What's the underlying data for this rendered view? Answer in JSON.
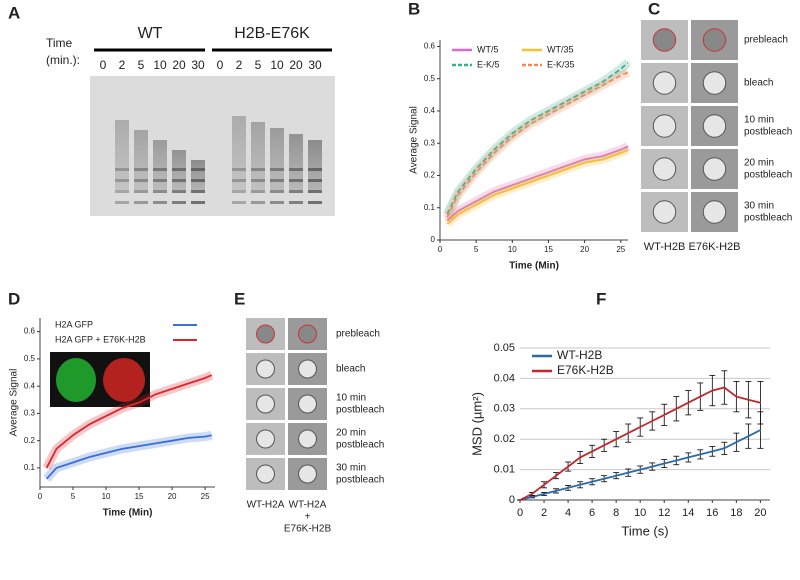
{
  "gel": {
    "letter": "A",
    "time_label": [
      "Time",
      "(min.):"
    ],
    "groups": [
      {
        "name": "WT",
        "times": [
          "0",
          "2",
          "5",
          "10",
          "20",
          "30"
        ]
      },
      {
        "name": "H2B-E76K",
        "times": [
          "0",
          "2",
          "5",
          "10",
          "20",
          "30"
        ]
      }
    ]
  },
  "frap_c": {
    "letter": "C",
    "columns": [
      "WT-H2B",
      "E76K-H2B"
    ],
    "rows": [
      [
        "prebleach"
      ],
      [
        "bleach"
      ],
      [
        "10 min",
        "postbleach"
      ],
      [
        "20 min",
        "postbleach"
      ],
      [
        "30 min",
        "postbleach"
      ]
    ]
  },
  "frap_e": {
    "letter": "E",
    "columns": [
      [
        "WT-H2A"
      ],
      [
        "WT-H2A",
        "+",
        "E76K-H2B"
      ]
    ],
    "rows": [
      [
        "prebleach"
      ],
      [
        "bleach"
      ],
      [
        "10 min",
        "postbleach"
      ],
      [
        "20 min",
        "postbleach"
      ],
      [
        "30 min",
        "postbleach"
      ]
    ]
  },
  "chart_data": [
    {
      "type": "line",
      "panel_label": "B",
      "xlabel": "Time (Min)",
      "ylabel": "Average Signal",
      "xlim": [
        0,
        26
      ],
      "ylim": [
        0,
        0.62
      ],
      "xticks": [
        0,
        5,
        10,
        15,
        20,
        25
      ],
      "yticks": [
        0,
        0.1,
        0.2,
        0.3,
        0.4,
        0.5,
        0.6
      ],
      "legend": "upper left",
      "grid": false,
      "x": [
        1,
        2.5,
        5,
        7.5,
        10,
        12.5,
        15,
        17.5,
        20,
        22.5,
        25,
        26
      ],
      "series": [
        {
          "name": "WT/5",
          "color": "#d96ad0",
          "style": "solid",
          "values": [
            0.06,
            0.09,
            0.12,
            0.15,
            0.17,
            0.19,
            0.21,
            0.23,
            0.25,
            0.26,
            0.28,
            0.29
          ]
        },
        {
          "name": "WT/35",
          "color": "#f2c230",
          "style": "solid",
          "values": [
            0.05,
            0.08,
            0.11,
            0.14,
            0.16,
            0.18,
            0.2,
            0.22,
            0.24,
            0.25,
            0.27,
            0.28
          ]
        },
        {
          "name": "E-K/5",
          "color": "#38b08e",
          "style": "dashed",
          "values": [
            0.08,
            0.15,
            0.22,
            0.28,
            0.33,
            0.37,
            0.4,
            0.43,
            0.46,
            0.49,
            0.53,
            0.55
          ]
        },
        {
          "name": "E-K/35",
          "color": "#f08a5a",
          "style": "dashed",
          "values": [
            0.07,
            0.14,
            0.21,
            0.27,
            0.32,
            0.36,
            0.39,
            0.42,
            0.45,
            0.48,
            0.51,
            0.52
          ]
        }
      ]
    },
    {
      "type": "line",
      "panel_label": "D",
      "xlabel": "Time (Min)",
      "ylabel": "Average Signal",
      "xlim": [
        0,
        26.5
      ],
      "ylim": [
        0.03,
        0.65
      ],
      "xticks": [
        0,
        5,
        10,
        15,
        20,
        25
      ],
      "yticks": [
        0.1,
        0.2,
        0.3,
        0.4,
        0.5,
        0.6
      ],
      "legend": "upper left",
      "grid": false,
      "x": [
        1,
        2.5,
        5,
        7.5,
        10,
        12.5,
        15,
        17.5,
        20,
        22.5,
        25,
        26
      ],
      "series": [
        {
          "name": "H2A GFP",
          "color": "#3a6fd8",
          "style": "solid",
          "values": [
            0.06,
            0.1,
            0.12,
            0.14,
            0.155,
            0.17,
            0.18,
            0.19,
            0.2,
            0.21,
            0.215,
            0.22
          ]
        },
        {
          "name": "H2A GFP + E76K-H2B",
          "color": "#e0252a",
          "style": "solid",
          "values": [
            0.1,
            0.17,
            0.22,
            0.26,
            0.29,
            0.32,
            0.34,
            0.37,
            0.39,
            0.41,
            0.43,
            0.44
          ]
        }
      ]
    },
    {
      "type": "line",
      "panel_label": "F",
      "xlabel": "Time (s)",
      "ylabel": "MSD (µm²)",
      "xlim": [
        0,
        20.8
      ],
      "ylim": [
        0,
        0.05
      ],
      "xticks": [
        0,
        2,
        4,
        6,
        8,
        10,
        12,
        14,
        16,
        18,
        20
      ],
      "yticks": [
        0,
        0.01,
        0.02,
        0.03,
        0.04,
        0.05
      ],
      "legend": "upper left",
      "grid": true,
      "x": [
        0,
        1,
        2,
        3,
        4,
        5,
        6,
        7,
        8,
        9,
        10,
        11,
        12,
        13,
        14,
        15,
        16,
        17,
        18,
        19,
        20
      ],
      "series": [
        {
          "name": "WT-H2B",
          "color": "#2e6aa8",
          "style": "solid",
          "values": [
            0,
            0.001,
            0.002,
            0.003,
            0.004,
            0.005,
            0.006,
            0.007,
            0.008,
            0.009,
            0.01,
            0.011,
            0.012,
            0.013,
            0.014,
            0.015,
            0.016,
            0.017,
            0.019,
            0.021,
            0.023
          ],
          "errors": [
            0,
            0.0003,
            0.0005,
            0.0007,
            0.0008,
            0.001,
            0.001,
            0.001,
            0.001,
            0.0012,
            0.0012,
            0.0012,
            0.0013,
            0.0014,
            0.0015,
            0.0015,
            0.0016,
            0.002,
            0.003,
            0.004,
            0.006
          ]
        },
        {
          "name": "E76K-H2B",
          "color": "#c0282d",
          "style": "solid",
          "values": [
            0,
            0.002,
            0.005,
            0.008,
            0.011,
            0.014,
            0.016,
            0.018,
            0.02,
            0.022,
            0.024,
            0.026,
            0.028,
            0.03,
            0.032,
            0.034,
            0.036,
            0.037,
            0.034,
            0.033,
            0.032
          ],
          "errors": [
            0,
            0.0005,
            0.001,
            0.001,
            0.0015,
            0.002,
            0.002,
            0.002,
            0.0025,
            0.003,
            0.003,
            0.003,
            0.0035,
            0.004,
            0.004,
            0.0045,
            0.005,
            0.0055,
            0.005,
            0.006,
            0.007
          ]
        }
      ]
    }
  ]
}
